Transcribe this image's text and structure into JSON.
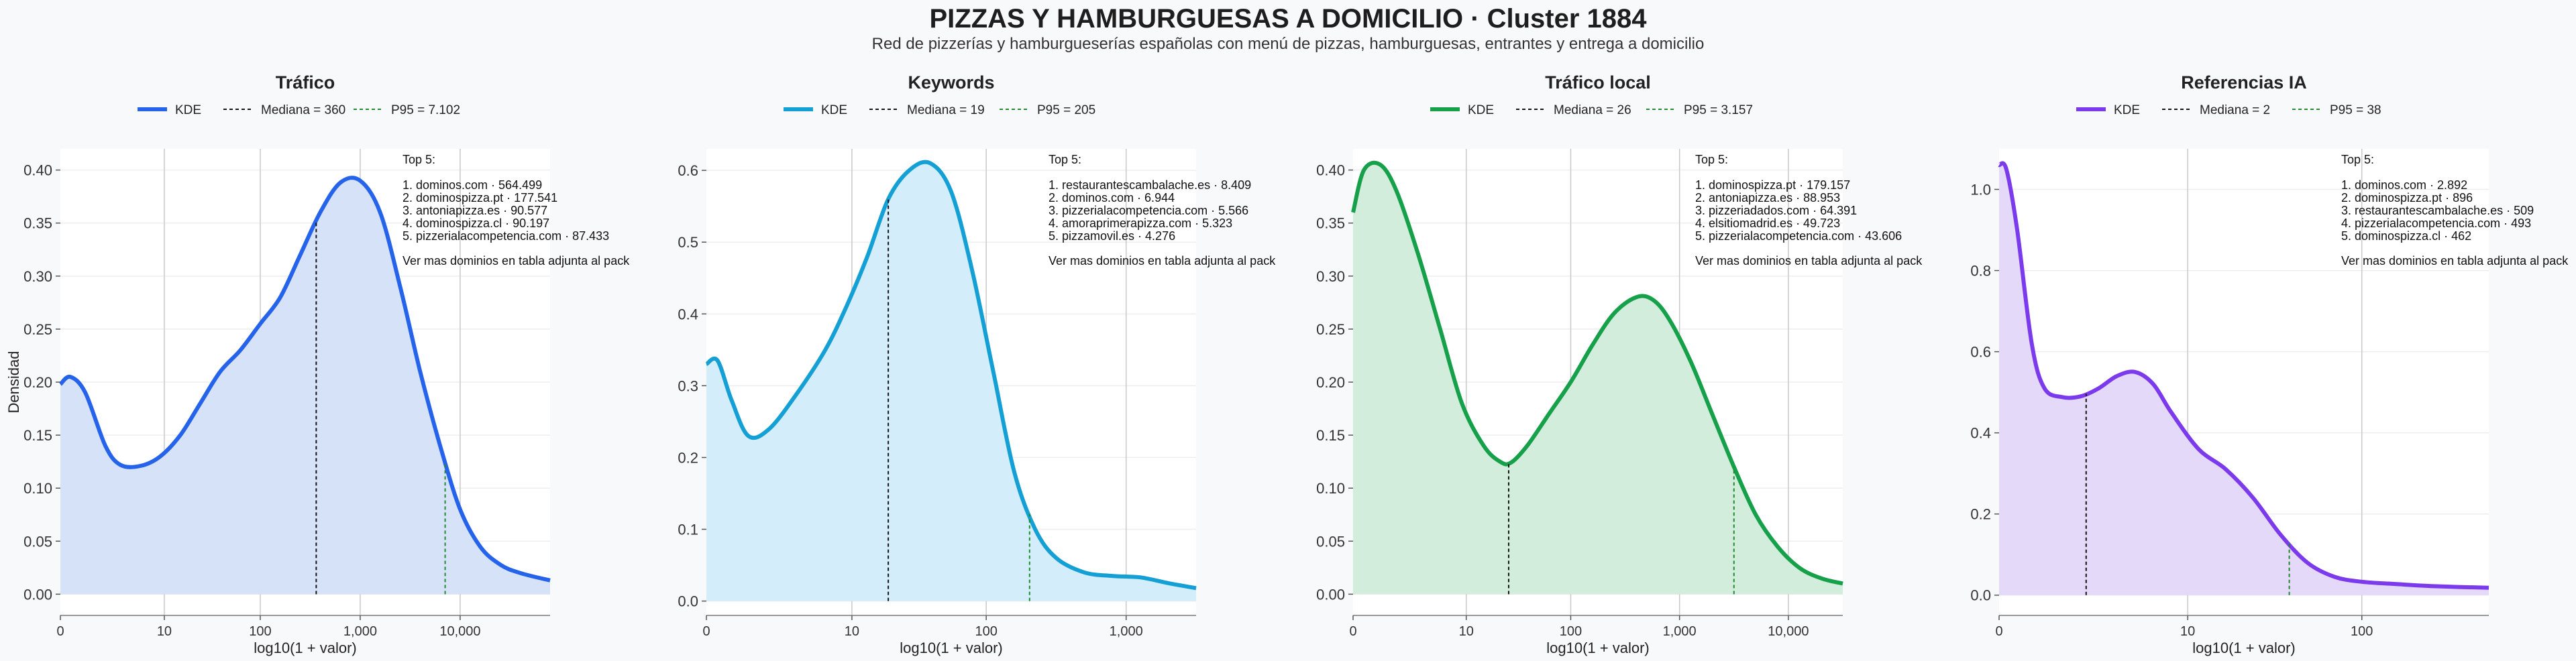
{
  "page": {
    "title": "PIZZAS Y HAMBURGUESAS A DOMICILIO · Cluster 1884",
    "subtitle": "Red de pizzerías y hamburgueserías españolas con menú de pizzas, hamburguesas, entrantes y entrega a domicilio"
  },
  "chart_data": [
    {
      "type": "area",
      "title": "Tráfico",
      "color": "#2563eb",
      "fill": "#d6e2f8",
      "xlabel": "log10(1 + valor)",
      "ylabel": "Densidad",
      "xlim": [
        0,
        4.9
      ],
      "ylim": [
        -0.02,
        0.42
      ],
      "yticks": [
        0.0,
        0.05,
        0.1,
        0.15,
        0.2,
        0.25,
        0.3,
        0.35,
        0.4
      ],
      "ytick_labels": [
        "0.00",
        "0.05",
        "0.10",
        "0.15",
        "0.20",
        "0.25",
        "0.30",
        "0.35",
        "0.40"
      ],
      "xticks": [
        0,
        1.04,
        2.0,
        3.0,
        4.0
      ],
      "xtick_labels": [
        "0",
        "10",
        "100",
        "1,000",
        "10,000"
      ],
      "legend": {
        "kde": "KDE",
        "median": "Mediana = 360",
        "p95": "P95 = 7.102"
      },
      "median": 2.56,
      "p95": 3.85,
      "series": [
        {
          "x": [
            0,
            0.1,
            0.25,
            0.45,
            0.6,
            0.8,
            1.0,
            1.2,
            1.4,
            1.6,
            1.8,
            2.0,
            2.2,
            2.4,
            2.6,
            2.8,
            3.0,
            3.2,
            3.4,
            3.6,
            3.8,
            4.0,
            4.2,
            4.4,
            4.6,
            4.9
          ],
          "y": [
            0.198,
            0.205,
            0.19,
            0.14,
            0.122,
            0.121,
            0.13,
            0.15,
            0.18,
            0.21,
            0.23,
            0.255,
            0.28,
            0.32,
            0.36,
            0.388,
            0.39,
            0.36,
            0.29,
            0.21,
            0.14,
            0.08,
            0.045,
            0.028,
            0.02,
            0.013
          ]
        }
      ],
      "top": {
        "heading": "Top 5:",
        "items": [
          "1. dominos.com · 564.499",
          "2. dominospizza.pt · 177.541",
          "3. antoniapizza.es · 90.577",
          "4. dominospizza.cl · 90.197",
          "5. pizzerialacompetencia.com · 87.433"
        ],
        "note": "Ver mas dominios en tabla adjunta al pack"
      }
    },
    {
      "type": "area",
      "title": "Keywords",
      "color": "#14a0d4",
      "fill": "#d3eefa",
      "xlabel": "log10(1 + valor)",
      "ylabel": "",
      "xlim": [
        0,
        3.5
      ],
      "ylim": [
        -0.02,
        0.63
      ],
      "yticks": [
        0.0,
        0.1,
        0.2,
        0.3,
        0.4,
        0.5,
        0.6
      ],
      "ytick_labels": [
        "0.0",
        "0.1",
        "0.2",
        "0.3",
        "0.4",
        "0.5",
        "0.6"
      ],
      "xticks": [
        0,
        1.04,
        2.0,
        3.0
      ],
      "xtick_labels": [
        "0",
        "10",
        "100",
        "1,000"
      ],
      "legend": {
        "kde": "KDE",
        "median": "Mediana = 19",
        "p95": "P95 = 205"
      },
      "median": 1.3,
      "p95": 2.31,
      "series": [
        {
          "x": [
            0,
            0.08,
            0.18,
            0.3,
            0.45,
            0.65,
            0.85,
            1.0,
            1.15,
            1.3,
            1.45,
            1.6,
            1.75,
            1.9,
            2.05,
            2.2,
            2.35,
            2.5,
            2.7,
            2.9,
            3.1,
            3.3,
            3.5
          ],
          "y": [
            0.33,
            0.335,
            0.28,
            0.23,
            0.24,
            0.29,
            0.35,
            0.41,
            0.48,
            0.56,
            0.6,
            0.61,
            0.57,
            0.46,
            0.32,
            0.18,
            0.1,
            0.06,
            0.04,
            0.035,
            0.033,
            0.025,
            0.018
          ]
        }
      ],
      "top": {
        "heading": "Top 5:",
        "items": [
          "1. restaurantescambalache.es · 8.409",
          "2. dominos.com · 6.944",
          "3. pizzerialacompetencia.com · 5.566",
          "4. amoraprimerapizza.com · 5.323",
          "5. pizzamovil.es · 4.276"
        ],
        "note": "Ver mas dominios en tabla adjunta al pack"
      }
    },
    {
      "type": "area",
      "title": "Tráfico local",
      "color": "#16a04a",
      "fill": "#d3eddc",
      "xlabel": "log10(1 + valor)",
      "ylabel": "",
      "xlim": [
        0,
        4.5
      ],
      "ylim": [
        -0.02,
        0.42
      ],
      "yticks": [
        0.0,
        0.05,
        0.1,
        0.15,
        0.2,
        0.25,
        0.3,
        0.35,
        0.4
      ],
      "ytick_labels": [
        "0.00",
        "0.05",
        "0.10",
        "0.15",
        "0.20",
        "0.25",
        "0.30",
        "0.35",
        "0.40"
      ],
      "xticks": [
        0,
        1.04,
        2.0,
        3.0,
        4.0
      ],
      "xtick_labels": [
        "0",
        "10",
        "100",
        "1,000",
        "10,000"
      ],
      "legend": {
        "kde": "KDE",
        "median": "Mediana = 26",
        "p95": "P95 = 3.157"
      },
      "median": 1.43,
      "p95": 3.5,
      "series": [
        {
          "x": [
            0,
            0.1,
            0.25,
            0.4,
            0.6,
            0.8,
            1.0,
            1.2,
            1.35,
            1.45,
            1.6,
            1.8,
            2.0,
            2.2,
            2.4,
            2.6,
            2.75,
            2.9,
            3.1,
            3.3,
            3.5,
            3.7,
            3.9,
            4.1,
            4.3,
            4.5
          ],
          "y": [
            0.36,
            0.4,
            0.405,
            0.38,
            0.32,
            0.25,
            0.18,
            0.14,
            0.125,
            0.124,
            0.14,
            0.17,
            0.2,
            0.235,
            0.265,
            0.28,
            0.278,
            0.26,
            0.22,
            0.17,
            0.12,
            0.075,
            0.045,
            0.025,
            0.015,
            0.01
          ]
        }
      ],
      "top": {
        "heading": "Top 5:",
        "items": [
          "1. dominospizza.pt · 179.157",
          "2. antoniapizza.es · 88.953",
          "3. pizzeriadados.com · 64.391",
          "4. elsitiomadrid.es · 49.723",
          "5. pizzerialacompetencia.com · 43.606"
        ],
        "note": "Ver mas dominios en tabla adjunta al pack"
      }
    },
    {
      "type": "area",
      "title": "Referencias IA",
      "color": "#7c3aed",
      "fill": "#e4d9f8",
      "xlabel": "log10(1 + valor)",
      "ylabel": "",
      "xlim": [
        0,
        2.7
      ],
      "ylim": [
        -0.05,
        1.1
      ],
      "yticks": [
        0.0,
        0.2,
        0.4,
        0.6,
        0.8,
        1.0
      ],
      "ytick_labels": [
        "0.0",
        "0.2",
        "0.4",
        "0.6",
        "0.8",
        "1.0"
      ],
      "xticks": [
        0,
        1.04,
        2.0
      ],
      "xtick_labels": [
        "0",
        "10",
        "100"
      ],
      "legend": {
        "kde": "KDE",
        "median": "Mediana = 2",
        "p95": "P95 = 38"
      },
      "median": 0.48,
      "p95": 1.6,
      "series": [
        {
          "x": [
            0,
            0.04,
            0.1,
            0.18,
            0.25,
            0.35,
            0.45,
            0.55,
            0.65,
            0.75,
            0.85,
            0.95,
            1.1,
            1.25,
            1.4,
            1.55,
            1.7,
            1.85,
            2.0,
            2.2,
            2.4,
            2.7
          ],
          "y": [
            1.06,
            1.05,
            0.9,
            0.62,
            0.51,
            0.488,
            0.49,
            0.51,
            0.54,
            0.55,
            0.52,
            0.45,
            0.36,
            0.31,
            0.24,
            0.15,
            0.08,
            0.045,
            0.033,
            0.027,
            0.022,
            0.018
          ]
        }
      ],
      "top": {
        "heading": "Top 5:",
        "items": [
          "1. dominos.com · 2.892",
          "2. dominospizza.pt · 896",
          "3. restaurantescambalache.es · 509",
          "4. pizzerialacompetencia.com · 493",
          "5. dominospizza.cl · 462"
        ],
        "note": "Ver mas dominios en tabla adjunta al pack"
      }
    }
  ]
}
